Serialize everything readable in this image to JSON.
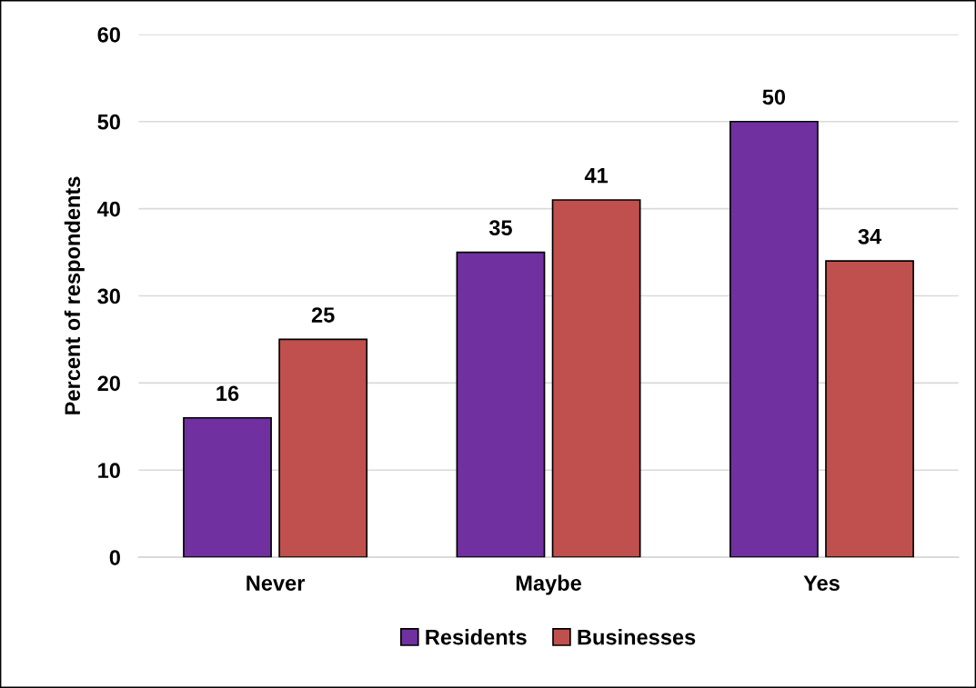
{
  "chart_data": {
    "type": "bar",
    "ylabel": "Percent of respondents",
    "categories": [
      "Never",
      "Maybe",
      "Yes"
    ],
    "series": [
      {
        "name": "Residents",
        "color": "#7030a0",
        "values": [
          16,
          35,
          50
        ]
      },
      {
        "name": "Businesses",
        "color": "#c0504d",
        "values": [
          25,
          41,
          34
        ]
      }
    ],
    "ylim": [
      0,
      60
    ],
    "yticks": [
      0,
      10,
      20,
      30,
      40,
      50,
      60
    ],
    "grid": "y",
    "legend": "bottom",
    "data_labels": true
  }
}
